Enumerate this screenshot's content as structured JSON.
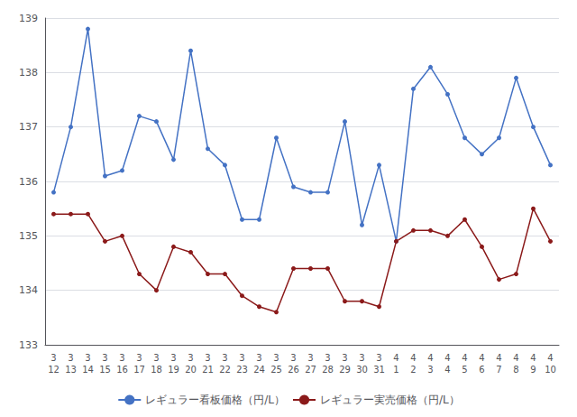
{
  "chart_data": {
    "type": "line",
    "categories": [
      "3\n12",
      "3\n13",
      "3\n14",
      "3\n15",
      "3\n16",
      "3\n17",
      "3\n18",
      "3\n19",
      "3\n20",
      "3\n21",
      "3\n22",
      "3\n23",
      "3\n24",
      "3\n25",
      "3\n26",
      "3\n27",
      "3\n28",
      "3\n29",
      "3\n30",
      "3\n31",
      "4\n1",
      "4\n2",
      "4\n3",
      "4\n4",
      "4\n5",
      "4\n6",
      "4\n7",
      "4\n8",
      "4\n9",
      "4\n10"
    ],
    "series": [
      {
        "name": "レギュラー看板価格（円/L）",
        "color": "#4472c4",
        "values": [
          135.8,
          137.0,
          138.8,
          136.1,
          136.2,
          137.2,
          137.1,
          136.4,
          138.4,
          136.6,
          136.3,
          135.3,
          135.3,
          136.8,
          135.9,
          135.8,
          135.8,
          137.1,
          135.2,
          136.3,
          134.9,
          137.7,
          138.1,
          137.6,
          136.8,
          136.5,
          136.8,
          137.9,
          137.0,
          136.3
        ]
      },
      {
        "name": "レギュラー実売価格（円/L）",
        "color": "#8b1a1a",
        "values": [
          135.4,
          135.4,
          135.4,
          134.9,
          135.0,
          134.3,
          134.0,
          134.8,
          134.7,
          134.3,
          134.3,
          133.9,
          133.7,
          133.6,
          134.4,
          134.4,
          134.4,
          133.8,
          133.8,
          133.7,
          134.9,
          135.1,
          135.1,
          135.0,
          135.3,
          134.8,
          134.2,
          134.3,
          135.5,
          134.9
        ]
      }
    ],
    "ylim": [
      133,
      139
    ],
    "yticks": [
      133,
      134,
      135,
      136,
      137,
      138,
      139
    ],
    "grid": true,
    "legend": "bottom",
    "marker": "circle"
  }
}
